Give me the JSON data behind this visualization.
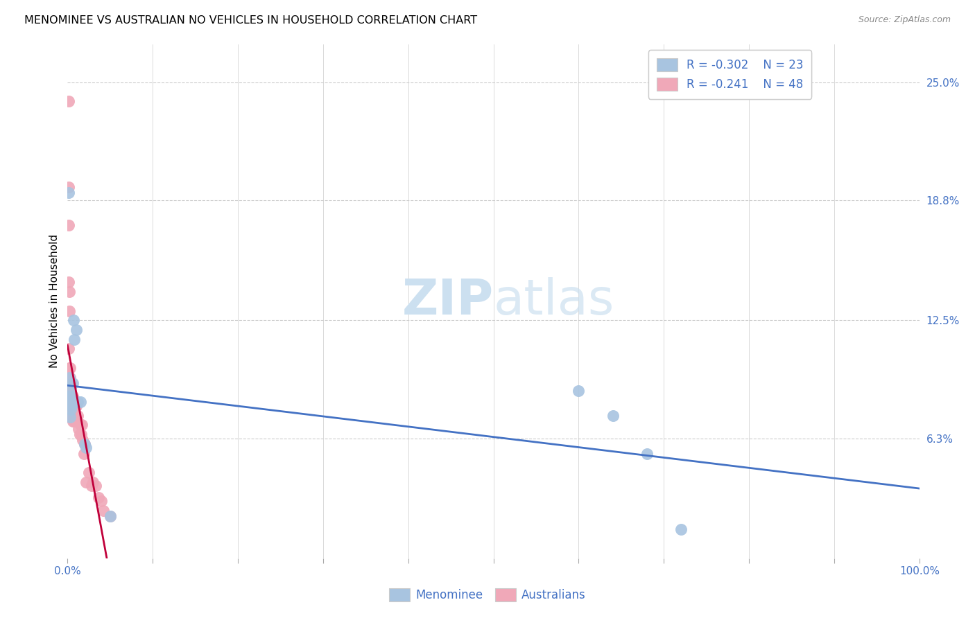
{
  "title": "MENOMINEE VS AUSTRALIAN NO VEHICLES IN HOUSEHOLD CORRELATION CHART",
  "source": "Source: ZipAtlas.com",
  "ylabel": "No Vehicles in Household",
  "ytick_vals": [
    0.25,
    0.188,
    0.125,
    0.063
  ],
  "ytick_labels": [
    "25.0%",
    "18.8%",
    "12.5%",
    "6.3%"
  ],
  "legend_blue_r": "-0.302",
  "legend_blue_n": "23",
  "legend_pink_r": "-0.241",
  "legend_pink_n": "48",
  "blue_scatter_color": "#a8c4e0",
  "pink_scatter_color": "#f0a8b8",
  "trendline_blue_color": "#4472c4",
  "trendline_pink_solid_color": "#c0003a",
  "trendline_pink_dash_color": "#d8a0a8",
  "label_color": "#4472c4",
  "watermark_color": "#cce0f0",
  "menominee_x": [
    0.001,
    0.001,
    0.002,
    0.002,
    0.003,
    0.003,
    0.004,
    0.004,
    0.005,
    0.005,
    0.006,
    0.007,
    0.008,
    0.01,
    0.012,
    0.015,
    0.02,
    0.022,
    0.05,
    0.6,
    0.64,
    0.68,
    0.72
  ],
  "menominee_y": [
    0.192,
    0.085,
    0.095,
    0.085,
    0.082,
    0.074,
    0.09,
    0.078,
    0.085,
    0.08,
    0.092,
    0.125,
    0.115,
    0.12,
    0.082,
    0.082,
    0.06,
    0.058,
    0.022,
    0.088,
    0.075,
    0.055,
    0.015
  ],
  "menominee_sizes": [
    120,
    120,
    120,
    120,
    120,
    120,
    120,
    120,
    120,
    120,
    120,
    200,
    180,
    180,
    120,
    120,
    120,
    120,
    120,
    180,
    160,
    160,
    120
  ],
  "australians_x": [
    0.001,
    0.001,
    0.001,
    0.001,
    0.001,
    0.002,
    0.002,
    0.002,
    0.002,
    0.003,
    0.003,
    0.003,
    0.003,
    0.004,
    0.004,
    0.004,
    0.005,
    0.005,
    0.005,
    0.006,
    0.006,
    0.006,
    0.007,
    0.007,
    0.008,
    0.008,
    0.009,
    0.01,
    0.01,
    0.011,
    0.012,
    0.013,
    0.014,
    0.015,
    0.016,
    0.017,
    0.018,
    0.019,
    0.02,
    0.022,
    0.025,
    0.028,
    0.03,
    0.033,
    0.036,
    0.04,
    0.042,
    0.05
  ],
  "australians_y": [
    0.24,
    0.195,
    0.175,
    0.145,
    0.11,
    0.14,
    0.13,
    0.1,
    0.088,
    0.1,
    0.095,
    0.09,
    0.082,
    0.09,
    0.082,
    0.078,
    0.092,
    0.086,
    0.075,
    0.085,
    0.078,
    0.072,
    0.082,
    0.075,
    0.08,
    0.072,
    0.075,
    0.08,
    0.072,
    0.072,
    0.075,
    0.068,
    0.065,
    0.07,
    0.065,
    0.07,
    0.062,
    0.055,
    0.06,
    0.04,
    0.045,
    0.038,
    0.04,
    0.038,
    0.032,
    0.03,
    0.025,
    0.022
  ],
  "australians_sizes": [
    130,
    130,
    130,
    130,
    130,
    130,
    130,
    130,
    130,
    130,
    130,
    130,
    130,
    130,
    130,
    130,
    130,
    130,
    130,
    130,
    130,
    130,
    130,
    130,
    130,
    130,
    130,
    130,
    130,
    130,
    130,
    130,
    130,
    130,
    130,
    130,
    130,
    130,
    130,
    130,
    200,
    130,
    130,
    130,
    130,
    130,
    130,
    130
  ],
  "xlim": [
    0.0,
    1.0
  ],
  "ylim": [
    0.0,
    0.27
  ]
}
